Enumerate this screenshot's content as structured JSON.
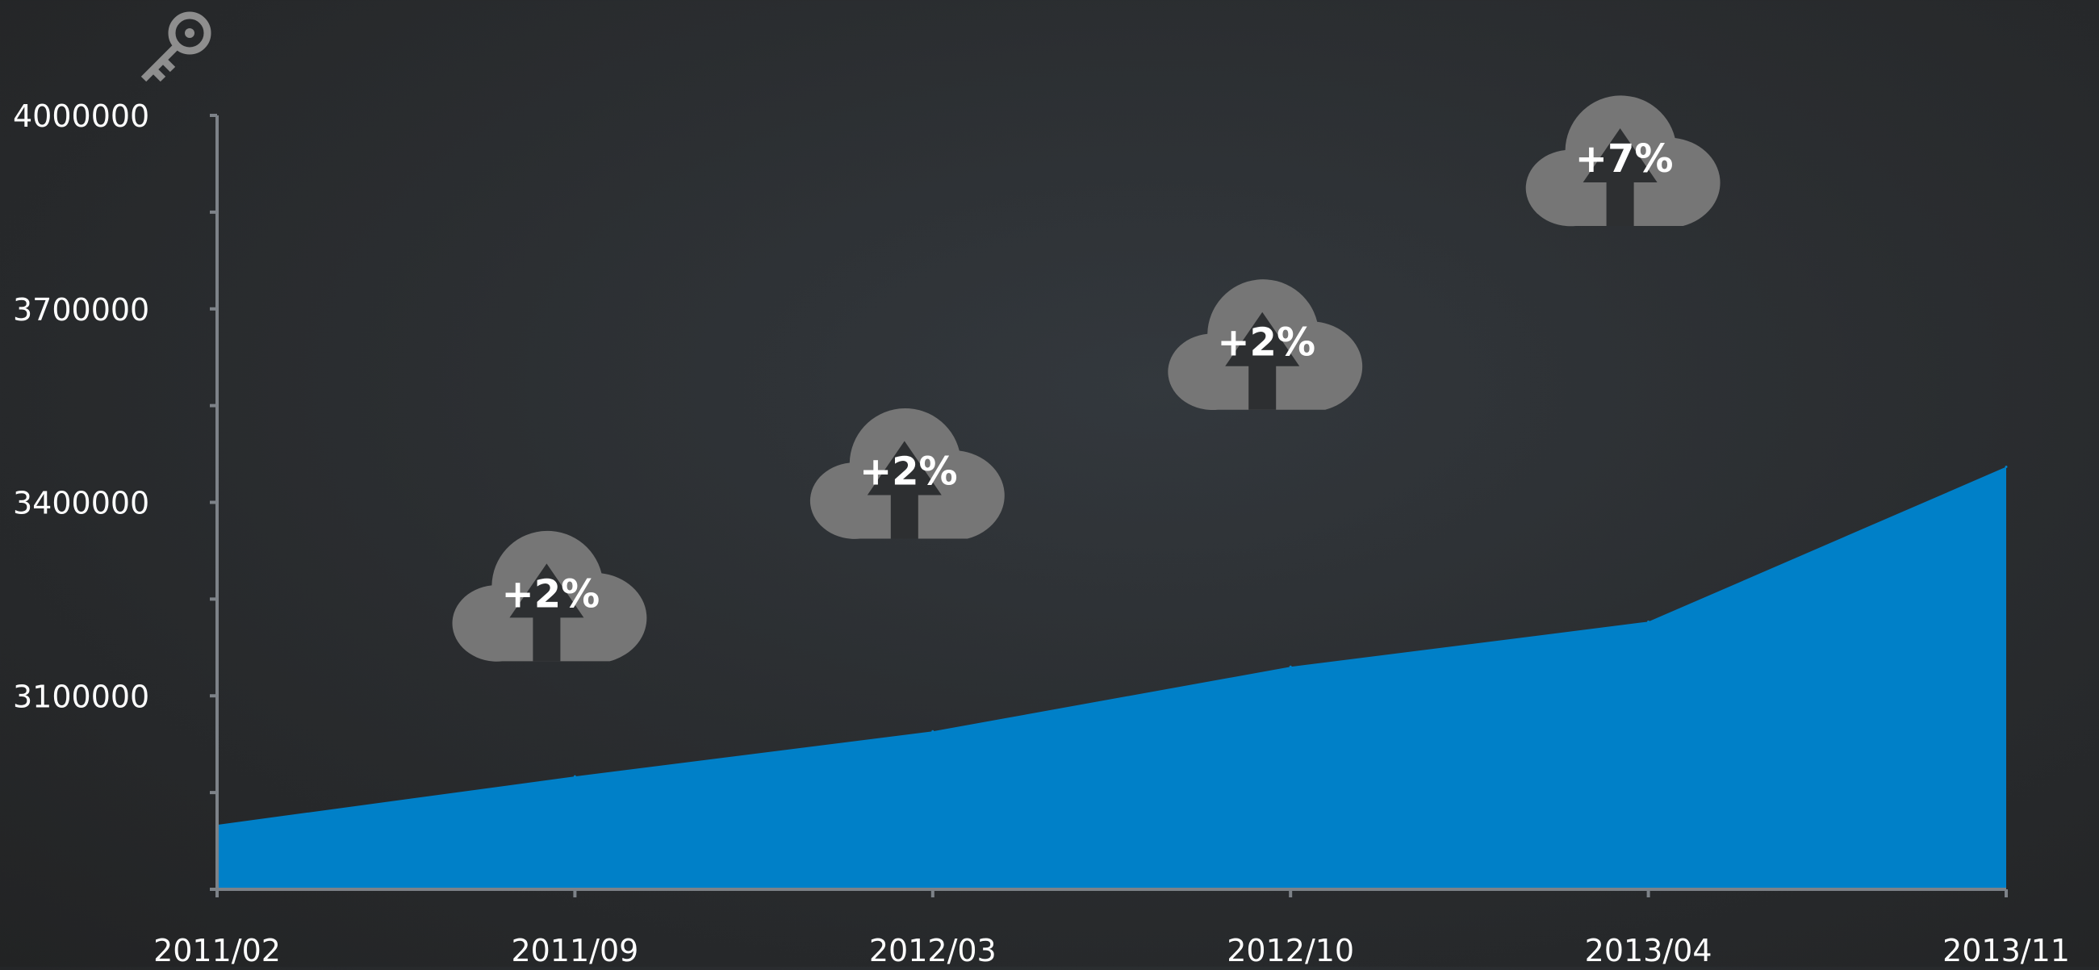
{
  "chart_data": {
    "type": "area",
    "title": "",
    "xlabel": "",
    "ylabel": "",
    "x_ticks": [
      "2011/02",
      "2011/09",
      "2012/03",
      "2012/10",
      "2013/04",
      "2013/11"
    ],
    "y_ticks": [
      4000000,
      3700000,
      3400000,
      3100000
    ],
    "ylim": [
      2800000,
      4000000
    ],
    "series": [
      {
        "x": [
          "2011/02",
          "2011/09",
          "2012/03",
          "2012/10",
          "2013/04",
          "2013/11"
        ],
        "values": [
          2900000,
          2975000,
          3045000,
          3145000,
          3215000,
          3455000
        ]
      }
    ],
    "annotations": [
      {
        "label": "+2%",
        "x": "2011/09",
        "y": 3280000,
        "icon": "cloud-upload-icon"
      },
      {
        "label": "+2%",
        "x": "2012/03",
        "y": 3470000,
        "icon": "cloud-upload-icon"
      },
      {
        "label": "+2%",
        "x": "2012/10",
        "y": 3670000,
        "icon": "cloud-upload-icon"
      },
      {
        "label": "+7%",
        "x": "2013/04",
        "y": 3955000,
        "icon": "cloud-upload-icon"
      }
    ],
    "grid": false,
    "legend": "none",
    "colors": {
      "area": "#0080c8",
      "axis": "#7d8288",
      "text": "#ffffff",
      "cloud": "#767676"
    }
  },
  "icons": {
    "corner": "key-icon"
  }
}
